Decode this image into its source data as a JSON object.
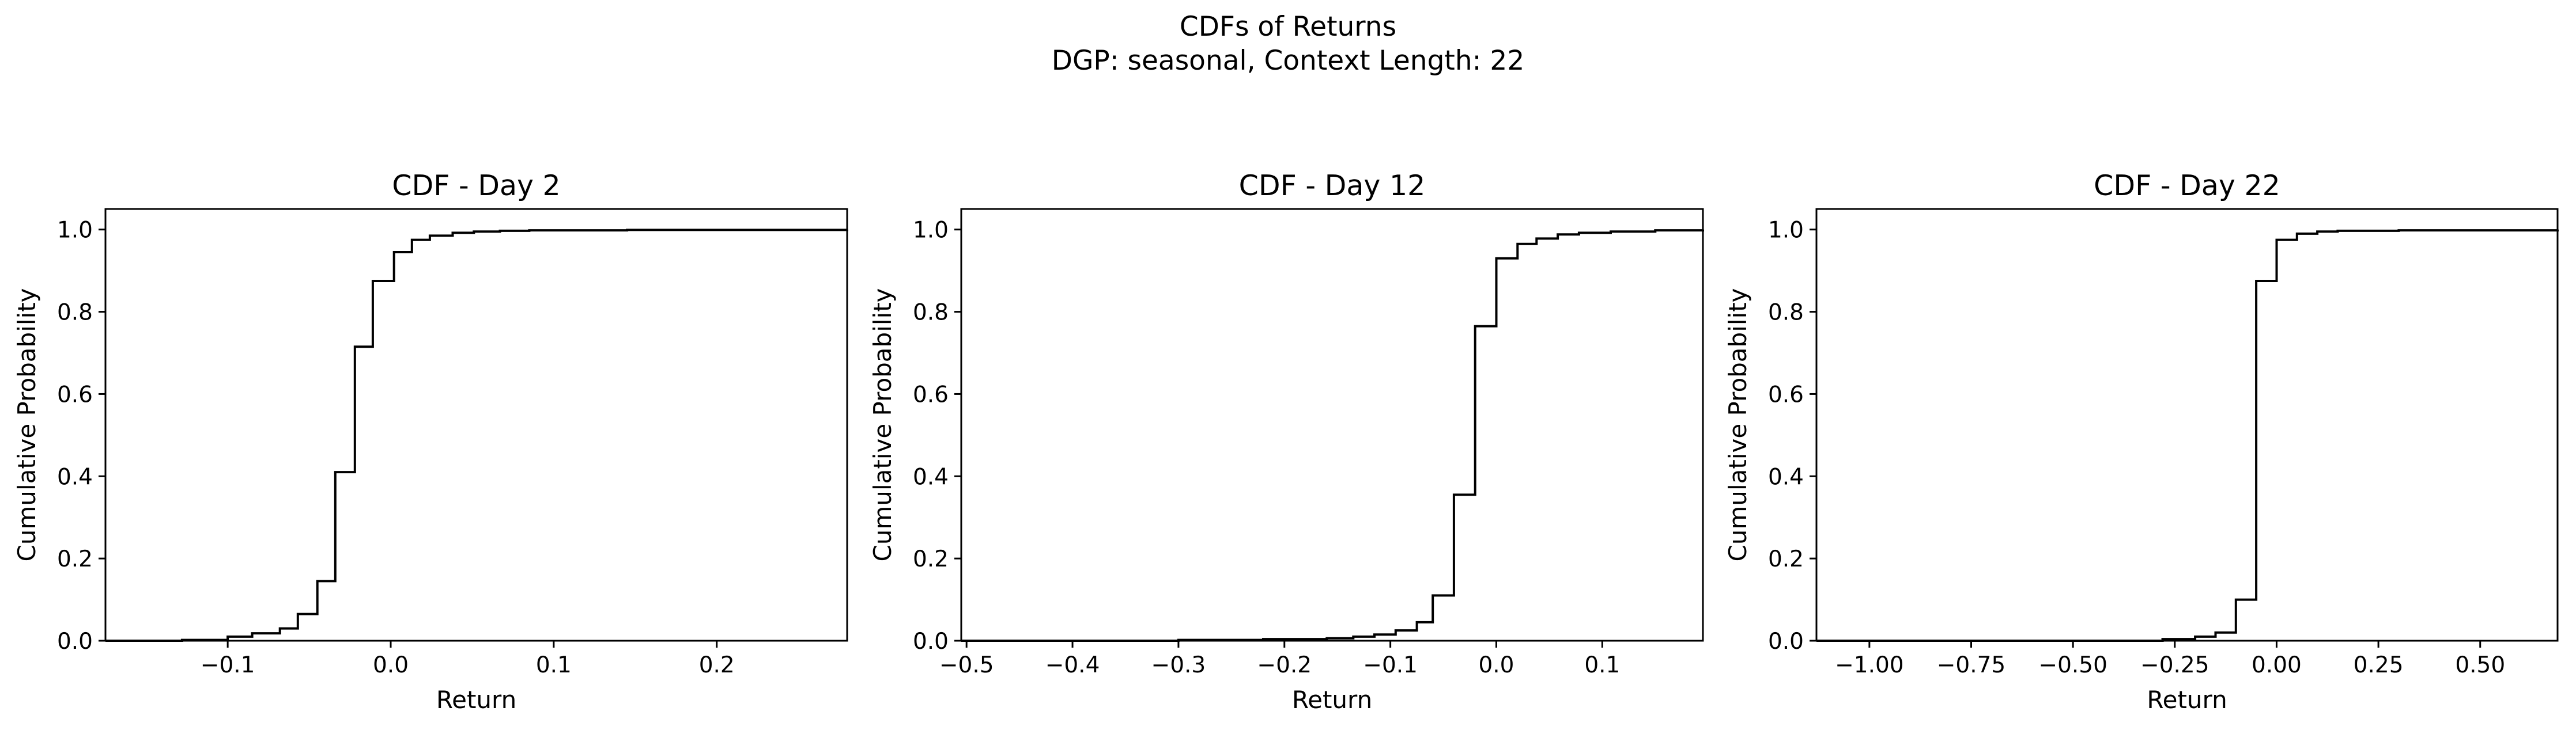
{
  "figure": {
    "suptitle_line1": "CDFs of Returns",
    "suptitle_line2": "DGP: seasonal, Context Length: 22"
  },
  "chart_data": [
    {
      "type": "line",
      "step": "post",
      "title": "CDF - Day 2",
      "xlabel": "Return",
      "ylabel": "Cumulative Probability",
      "xlim": [
        -0.175,
        0.28
      ],
      "ylim": [
        0,
        1.05
      ],
      "xticks": [
        -0.1,
        0.0,
        0.1,
        0.2
      ],
      "xtick_labels": [
        "−0.1",
        "0.0",
        "0.1",
        "0.2"
      ],
      "yticks": [
        0.0,
        0.2,
        0.4,
        0.6,
        0.8,
        1.0
      ],
      "ytick_labels": [
        "0.0",
        "0.2",
        "0.4",
        "0.6",
        "0.8",
        "1.0"
      ],
      "grid": false,
      "line_color": "#000000",
      "x": [
        -0.175,
        -0.128,
        -0.1,
        -0.085,
        -0.068,
        -0.057,
        -0.045,
        -0.034,
        -0.022,
        -0.011,
        0.002,
        0.013,
        0.024,
        0.038,
        0.051,
        0.067,
        0.085,
        0.145,
        0.28
      ],
      "y": [
        0.0,
        0.002,
        0.01,
        0.018,
        0.03,
        0.065,
        0.145,
        0.41,
        0.715,
        0.875,
        0.945,
        0.975,
        0.985,
        0.992,
        0.995,
        0.997,
        0.998,
        0.999,
        1.0
      ]
    },
    {
      "type": "line",
      "step": "post",
      "title": "CDF - Day 12",
      "xlabel": "Return",
      "ylabel": "Cumulative Probability",
      "xlim": [
        -0.505,
        0.195
      ],
      "ylim": [
        0,
        1.05
      ],
      "xticks": [
        -0.5,
        -0.4,
        -0.3,
        -0.2,
        -0.1,
        0.0,
        0.1
      ],
      "xtick_labels": [
        "−0.5",
        "−0.4",
        "−0.3",
        "−0.2",
        "−0.1",
        "0.0",
        "0.1"
      ],
      "yticks": [
        0.0,
        0.2,
        0.4,
        0.6,
        0.8,
        1.0
      ],
      "ytick_labels": [
        "0.0",
        "0.2",
        "0.4",
        "0.6",
        "0.8",
        "1.0"
      ],
      "grid": false,
      "line_color": "#000000",
      "x": [
        -0.505,
        -0.3,
        -0.22,
        -0.16,
        -0.135,
        -0.115,
        -0.095,
        -0.075,
        -0.06,
        -0.04,
        -0.02,
        0.0,
        0.02,
        0.038,
        0.058,
        0.078,
        0.108,
        0.15,
        0.195
      ],
      "y": [
        0.0,
        0.002,
        0.004,
        0.006,
        0.01,
        0.015,
        0.025,
        0.045,
        0.11,
        0.355,
        0.765,
        0.93,
        0.965,
        0.978,
        0.988,
        0.992,
        0.995,
        0.998,
        1.0
      ]
    },
    {
      "type": "line",
      "step": "post",
      "title": "CDF - Day 22",
      "xlabel": "Return",
      "ylabel": "Cumulative Probability",
      "xlim": [
        -1.13,
        0.69
      ],
      "ylim": [
        0,
        1.05
      ],
      "xticks": [
        -1.0,
        -0.75,
        -0.5,
        -0.25,
        0.0,
        0.25,
        0.5
      ],
      "xtick_labels": [
        "−1.00",
        "−0.75",
        "−0.50",
        "−0.25",
        "0.00",
        "0.25",
        "0.50"
      ],
      "yticks": [
        0.0,
        0.2,
        0.4,
        0.6,
        0.8,
        1.0
      ],
      "ytick_labels": [
        "0.0",
        "0.2",
        "0.4",
        "0.6",
        "0.8",
        "1.0"
      ],
      "grid": false,
      "line_color": "#000000",
      "x": [
        -1.13,
        -0.28,
        -0.2,
        -0.15,
        -0.1,
        -0.05,
        0.0,
        0.05,
        0.1,
        0.15,
        0.3,
        0.69
      ],
      "y": [
        0.0,
        0.004,
        0.01,
        0.02,
        0.1,
        0.875,
        0.975,
        0.99,
        0.995,
        0.997,
        0.998,
        1.0
      ]
    }
  ]
}
